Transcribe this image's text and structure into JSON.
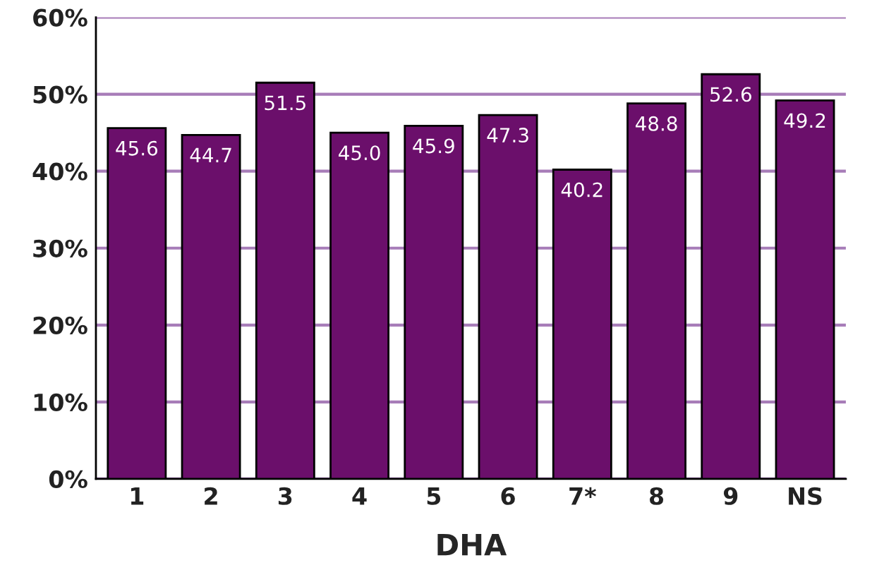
{
  "chart_data": {
    "type": "bar",
    "xlabel": "DHA",
    "categories": [
      "1",
      "2",
      "3",
      "4",
      "5",
      "6",
      "7*",
      "8",
      "9",
      "NS"
    ],
    "values": [
      45.6,
      44.7,
      51.5,
      45.0,
      45.9,
      47.3,
      40.2,
      48.8,
      52.6,
      49.2
    ],
    "value_labels": [
      "45.6",
      "44.7",
      "51.5",
      "45.0",
      "45.9",
      "47.3",
      "40.2",
      "48.8",
      "52.6",
      "49.2"
    ],
    "color": "#6b0f6b",
    "ylim": [
      0,
      60
    ],
    "yticks": [
      {
        "value": 0,
        "label": "0%"
      },
      {
        "value": 10,
        "label": "10%"
      },
      {
        "value": 20,
        "label": "20%"
      },
      {
        "value": 30,
        "label": "30%"
      },
      {
        "value": 40,
        "label": "40%"
      },
      {
        "value": 50,
        "label": "50%"
      },
      {
        "value": 60,
        "label": "60%"
      }
    ],
    "grid": "y",
    "legend": false
  }
}
